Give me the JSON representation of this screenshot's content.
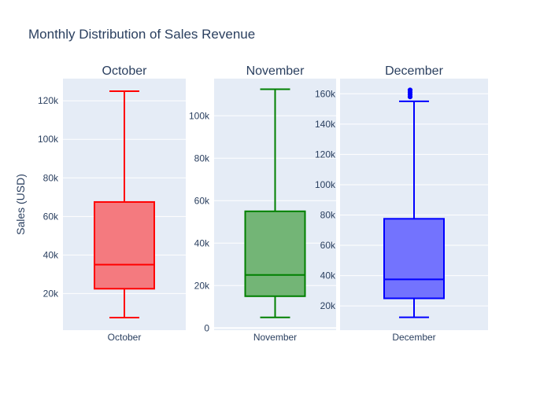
{
  "title": "Monthly Distribution of Sales Revenue",
  "chart_data": [
    {
      "type": "box",
      "title": "October",
      "ylabel": "Sales (USD)",
      "category": "October",
      "ylim": [
        1000,
        131500
      ],
      "yticks": [
        20000,
        40000,
        60000,
        80000,
        100000,
        120000
      ],
      "yticklabels": [
        "20k",
        "40k",
        "60k",
        "80k",
        "100k",
        "120k"
      ],
      "box": {
        "min": 7500,
        "q1": 22500,
        "median": 35000,
        "q3": 67500,
        "max": 125000,
        "outliers": []
      },
      "color": "#ff0000",
      "fill": "#f47a7f"
    },
    {
      "type": "box",
      "title": "November",
      "ylabel": "",
      "category": "November",
      "ylim": [
        -1000,
        117500
      ],
      "yticks": [
        0,
        20000,
        40000,
        60000,
        80000,
        100000
      ],
      "yticklabels": [
        "0",
        "20k",
        "40k",
        "60k",
        "80k",
        "100k"
      ],
      "box": {
        "min": 5000,
        "q1": 15000,
        "median": 25000,
        "q3": 55000,
        "max": 112500,
        "outliers": []
      },
      "color": "#008000",
      "fill": "#73b576"
    },
    {
      "type": "box",
      "title": "December",
      "ylabel": "",
      "category": "December",
      "ylim": [
        4000,
        170000
      ],
      "yticks": [
        20000,
        40000,
        60000,
        80000,
        100000,
        120000,
        140000,
        160000
      ],
      "yticklabels": [
        "20k",
        "40k",
        "60k",
        "80k",
        "100k",
        "120k",
        "140k",
        "160k"
      ],
      "box": {
        "min": 12500,
        "q1": 25000,
        "median": 37500,
        "q3": 77500,
        "max": 155000,
        "outliers": [
          158000,
          159500,
          161000,
          162500
        ]
      },
      "color": "#0000ff",
      "fill": "#7373fe"
    }
  ],
  "colors": {
    "plot_bg": "#e5ecf6",
    "grid": "#ffffff",
    "text": "#2a3f5f"
  }
}
